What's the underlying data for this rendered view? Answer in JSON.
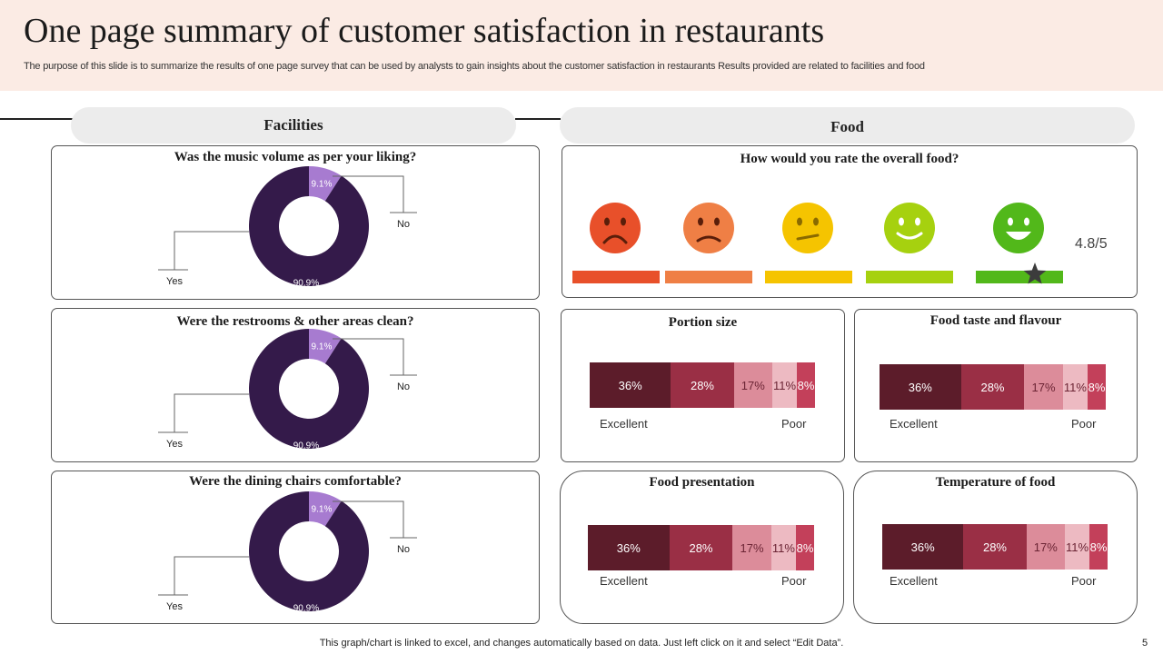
{
  "header": {
    "title": "One page summary of customer satisfaction in restaurants",
    "subtitle": "The purpose of this slide is to summarize the results of one page survey that can be used by analysts to gain insights about the customer satisfaction in restaurants Results provided are related to facilities and food"
  },
  "sections": {
    "facilities": "Facilities",
    "food": "Food"
  },
  "colors": {
    "donut_main": "#341a4a",
    "donut_minor": "#a77bd0",
    "stack": [
      "#5c1c2a",
      "#9a2f45",
      "#dc8c9a",
      "#edbac2",
      "#c3405a"
    ],
    "faces": [
      "#e8502a",
      "#ef7f45",
      "#f5c400",
      "#a6d10f",
      "#52b81a"
    ]
  },
  "food_rating": {
    "question": "How would you rate the overall food?",
    "value_label": "4.8/5",
    "faces": [
      "very-sad",
      "sad",
      "neutral",
      "happy",
      "very-happy"
    ]
  },
  "chart_data": [
    {
      "type": "pie",
      "title": "Was the music volume as per your liking?",
      "categories": [
        "Yes",
        "No"
      ],
      "values": [
        90.9,
        9.1
      ],
      "value_labels": [
        "90.9%",
        "9.1%"
      ]
    },
    {
      "type": "pie",
      "title": "Were the restrooms & other areas clean?",
      "categories": [
        "Yes",
        "No"
      ],
      "values": [
        90.9,
        9.1
      ],
      "value_labels": [
        "90.9%",
        "9.1%"
      ]
    },
    {
      "type": "pie",
      "title": "Were the dining chairs comfortable?",
      "categories": [
        "Yes",
        "No"
      ],
      "values": [
        90.9,
        9.1
      ],
      "value_labels": [
        "90.9%",
        "9.1%"
      ]
    },
    {
      "type": "bar",
      "stacked": true,
      "title": "Portion size",
      "values": [
        36,
        28,
        17,
        11,
        8
      ],
      "value_labels": [
        "36%",
        "28%",
        "17%",
        "11%",
        "8%"
      ],
      "axis_left": "Excellent",
      "axis_right": "Poor"
    },
    {
      "type": "bar",
      "stacked": true,
      "title": "Food taste and flavour",
      "values": [
        36,
        28,
        17,
        11,
        8
      ],
      "value_labels": [
        "36%",
        "28%",
        "17%",
        "11%",
        "8%"
      ],
      "axis_left": "Excellent",
      "axis_right": "Poor"
    },
    {
      "type": "bar",
      "stacked": true,
      "title": "Food presentation",
      "values": [
        36,
        28,
        17,
        11,
        8
      ],
      "value_labels": [
        "36%",
        "28%",
        "17%",
        "11%",
        "8%"
      ],
      "axis_left": "Excellent",
      "axis_right": "Poor"
    },
    {
      "type": "bar",
      "stacked": true,
      "title": "Temperature  of food",
      "values": [
        36,
        28,
        17,
        11,
        8
      ],
      "value_labels": [
        "36%",
        "28%",
        "17%",
        "11%",
        "8%"
      ],
      "axis_left": "Excellent",
      "axis_right": "Poor"
    }
  ],
  "footer": {
    "note": "This graph/chart is linked to excel,  and changes automatically based on data. Just left click on it and select “Edit Data”.",
    "page": "5"
  }
}
